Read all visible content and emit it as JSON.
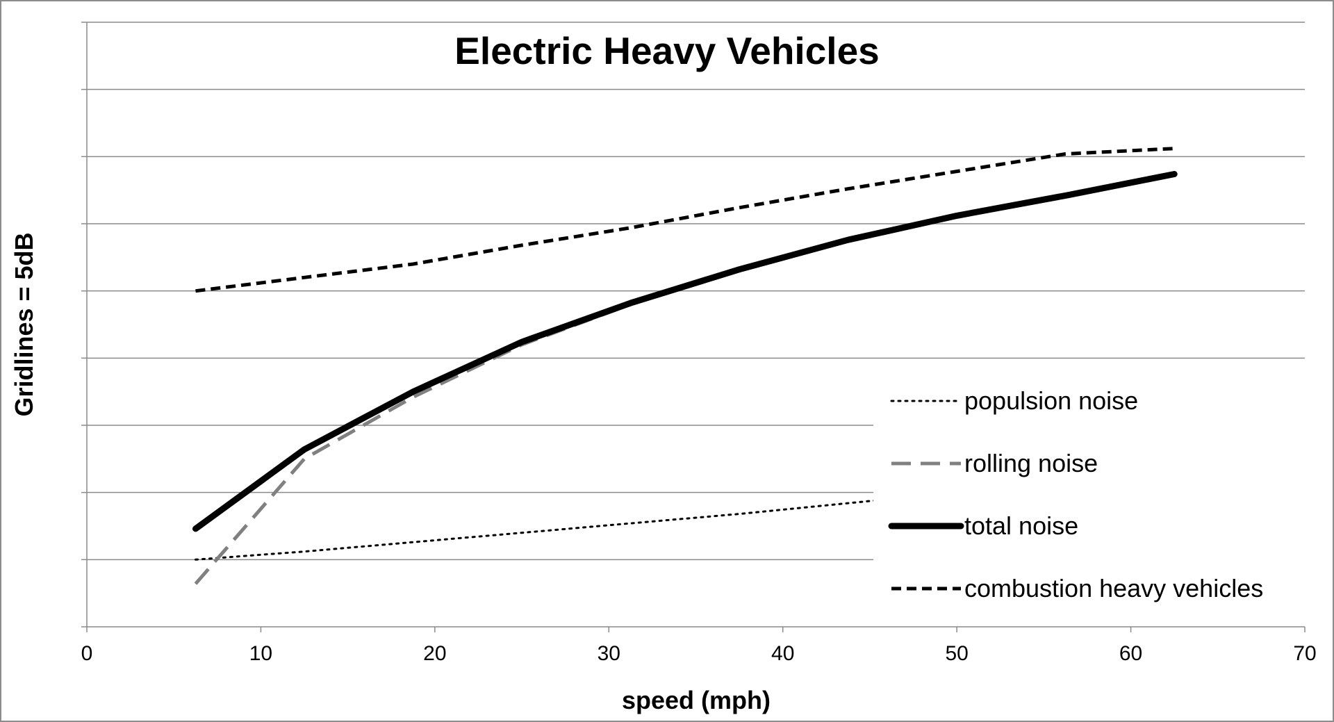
{
  "chart_data": {
    "type": "line",
    "title": "Electric Heavy Vehicles",
    "xlabel": "speed (mph)",
    "ylabel": "Gridlines = 5dB",
    "xlim": [
      0,
      70
    ],
    "ylim": [
      0,
      45
    ],
    "x_ticks": [
      "0",
      "10",
      "20",
      "30",
      "40",
      "50",
      "60",
      "70"
    ],
    "y_gridline_step": 5,
    "y_tick_labels_shown": false,
    "grid": "horizontal",
    "legend_position": "bottom-right, inside plot",
    "x": [
      6.25,
      12.5,
      18.75,
      25,
      31.25,
      37.5,
      43.75,
      50,
      56.25,
      62.5
    ],
    "series": [
      {
        "name": "populsion noise",
        "style": "dotted",
        "color": "#000000",
        "values": [
          5.0,
          5.6,
          6.3,
          7.0,
          7.7,
          8.4,
          9.2,
          10.0,
          10.8,
          11.6
        ]
      },
      {
        "name": "rolling noise",
        "style": "long-dash",
        "color": "#808080",
        "values": [
          3.2,
          12.5,
          17.1,
          21.0,
          24.0,
          26.5,
          28.7,
          30.5,
          32.1,
          33.6
        ]
      },
      {
        "name": "total noise",
        "style": "solid-thick",
        "color": "#000000",
        "values": [
          7.3,
          13.2,
          17.5,
          21.2,
          24.1,
          26.6,
          28.8,
          30.6,
          32.1,
          33.7
        ]
      },
      {
        "name": "combustion heavy vehicles",
        "style": "short-dash",
        "color": "#000000",
        "values": [
          25.0,
          26.0,
          27.0,
          28.4,
          29.7,
          31.2,
          32.6,
          33.9,
          35.2,
          35.6
        ]
      }
    ]
  }
}
